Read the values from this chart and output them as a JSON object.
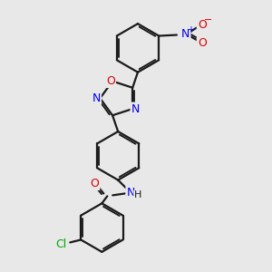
{
  "background_color": "#e8e8e8",
  "bond_color": "#1a1a1a",
  "atom_colors": {
    "N": "#0000ee",
    "O": "#dd0000",
    "Cl": "#00aa00",
    "C": "#1a1a1a",
    "H": "#1a1a1a"
  },
  "figsize": [
    3.0,
    3.0
  ],
  "dpi": 100
}
